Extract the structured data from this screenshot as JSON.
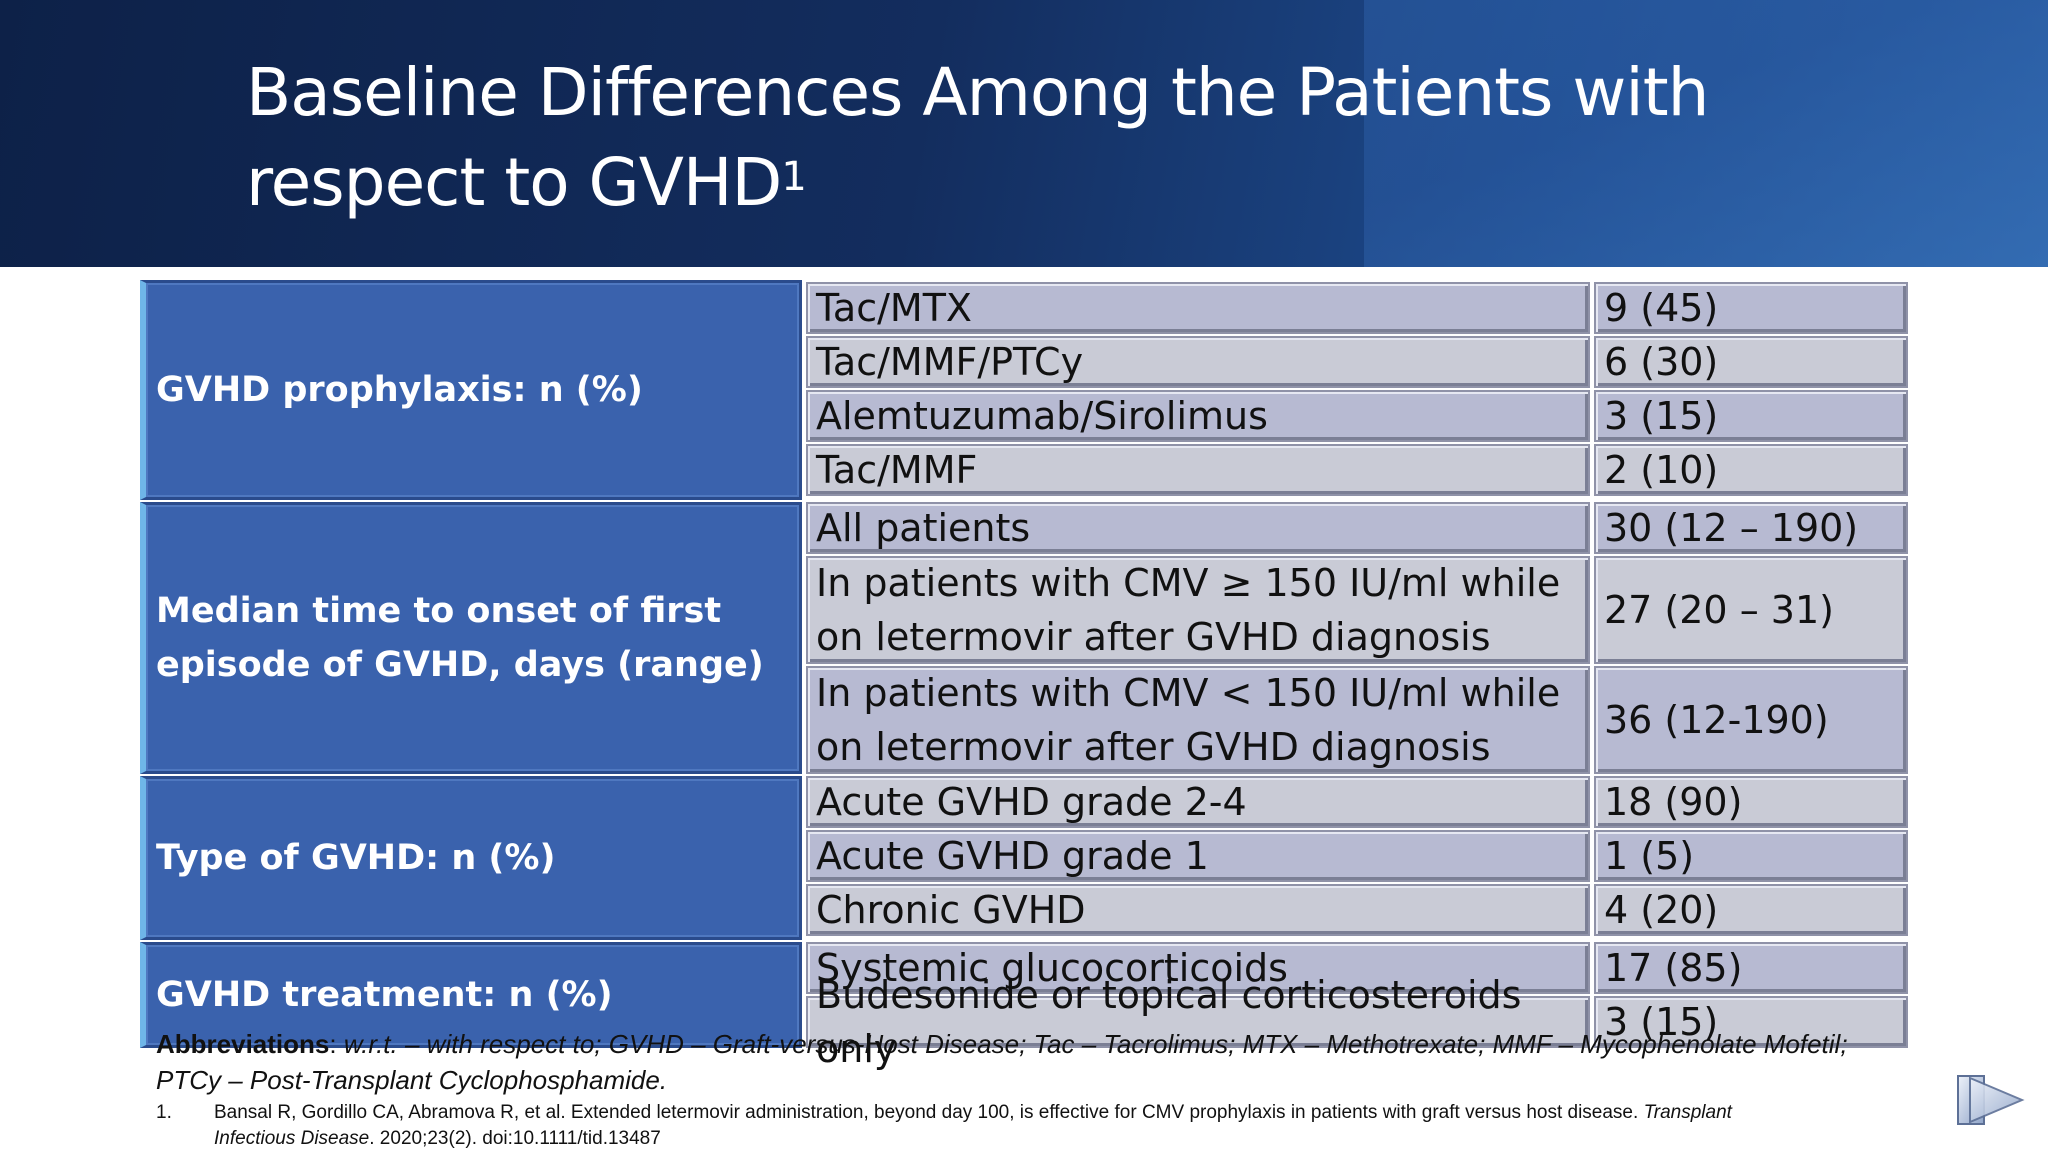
{
  "title": {
    "text": "Baseline Differences Among the Patients with respect to GVHD",
    "superscript": "1"
  },
  "table": {
    "groups": [
      {
        "category": "GVHD prophylaxis: n (%)",
        "rows": [
          {
            "label": "Tac/MTX",
            "value": "9 (45)"
          },
          {
            "label": "Tac/MMF/PTCy",
            "value": "6 (30)"
          },
          {
            "label": "Alemtuzumab/Sirolimus",
            "value": "3 (15)"
          },
          {
            "label": "Tac/MMF",
            "value": "2 (10)"
          }
        ]
      },
      {
        "category": "Median time to onset of first episode of GVHD, days (range)",
        "rows": [
          {
            "label": "All patients",
            "value": "30 (12 – 190)"
          },
          {
            "label": "In patients with CMV ≥ 150 IU/ml while on letermovir after GVHD diagnosis",
            "value": "27 (20 – 31)"
          },
          {
            "label": "In patients with CMV < 150 IU/ml while on letermovir after GVHD diagnosis",
            "value": "36 (12-190)"
          }
        ]
      },
      {
        "category": "Type of GVHD: n (%)",
        "rows": [
          {
            "label": "Acute GVHD grade 2-4",
            "value": "18 (90)"
          },
          {
            "label": "Acute GVHD grade 1",
            "value": "1 (5)"
          },
          {
            "label": "Chronic GVHD",
            "value": "4 (20)"
          }
        ]
      },
      {
        "category": "GVHD treatment: n (%)",
        "rows": [
          {
            "label": "Systemic glucocorticoids",
            "value": "17 (85)"
          },
          {
            "label": "Budesonide or topical corticosteroids only",
            "value": "3 (15)"
          }
        ]
      }
    ]
  },
  "abbreviations": {
    "heading": "Abbreviations",
    "text": "w.r.t. – with respect to; GVHD – Graft-versus-Host Disease; Tac – Tacrolimus; MTX – Methotrexate; MMF – Mycophenolate Mofetil; PTCy – Post-Transplant Cyclophosphamide."
  },
  "reference": {
    "number": "1.",
    "text": "Bansal R, Gordillo CA, Abramova R, et al. Extended letermovir administration, beyond day 100, is effective for CMV prophylaxis in patients with graft versus host disease.",
    "journal": "Transplant Infectious Disease",
    "citation": ". 2020;23(2). doi:10.1111/tid.13487"
  },
  "nav": {
    "icon": "next-slide-icon"
  }
}
